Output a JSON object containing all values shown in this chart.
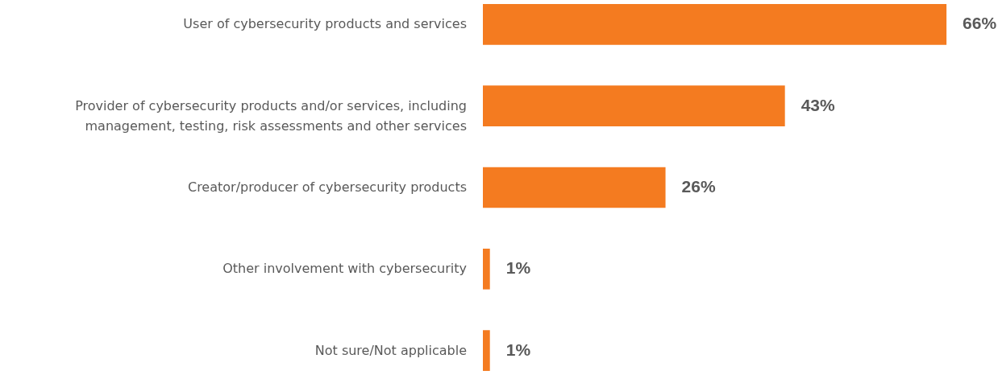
{
  "chart_data": {
    "type": "bar",
    "orientation": "horizontal",
    "categories": [
      "User of cybersecurity products and services",
      "Provider of cybersecurity products and/or services, including management, testing, risk assessments and other services",
      "Creator/producer of cybersecurity products",
      "Other involvement with cybersecurity",
      "Not sure/Not applicable"
    ],
    "values": [
      66,
      43,
      26,
      1,
      1
    ],
    "value_labels": [
      "66%",
      "43%",
      "26%",
      "1%",
      "1%"
    ],
    "color": "#f47b20"
  }
}
